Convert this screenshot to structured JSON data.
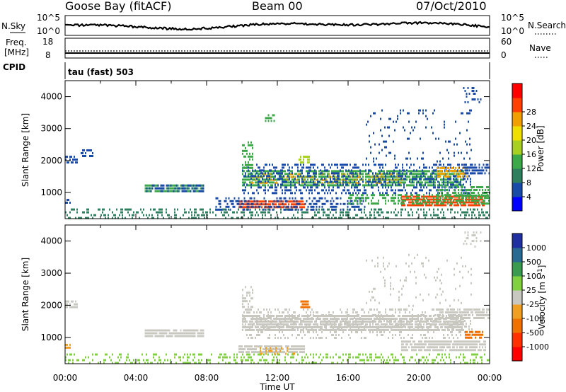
{
  "header": {
    "station": "Goose Bay (fitACF)",
    "beam": "Beam 00",
    "date": "07/Oct/2010"
  },
  "noise_panel": {
    "left_label": "N.Sky",
    "right_label": "N.Search",
    "left_ticks": [
      "10^5",
      "10^0"
    ],
    "right_ticks": [
      "10^5",
      "10^0"
    ]
  },
  "freq_panel": {
    "left_label_1": "Freq.",
    "left_label_2": "[MHz]",
    "right_label": "Nave",
    "left_ticks": [
      "18",
      "8"
    ],
    "right_ticks": [
      "60",
      "0"
    ]
  },
  "cpid": {
    "label": "CPID",
    "text": "tau (fast) 503"
  },
  "chart_data": [
    {
      "type": "heatmap",
      "name": "power",
      "ylabel": "Slant Range [km]",
      "xlabel": "",
      "ylim": [
        180,
        4500
      ],
      "yticks": [
        1000,
        2000,
        3000,
        4000
      ],
      "xlim": [
        0,
        24
      ],
      "x_ticks": [
        "00:00",
        "04:00",
        "08:00",
        "12:00",
        "16:00",
        "20:00",
        "00:00"
      ],
      "colorbar": {
        "label": "Power [dB]",
        "ticks": [
          "4",
          "8",
          "12",
          "16",
          "20",
          "24",
          "28"
        ],
        "colors": [
          "#0000ff",
          "#1a4aa8",
          "#2f7f5f",
          "#3da84a",
          "#a8d020",
          "#f0e000",
          "#f0a000",
          "#ff4000",
          "#ff0000"
        ]
      },
      "regions": [
        {
          "t0": 0.0,
          "t1": 24.0,
          "r0": 200,
          "r1": 500,
          "color": "#2f7f5f",
          "density": 0.35
        },
        {
          "t0": 0.0,
          "t1": 0.7,
          "r0": 1950,
          "r1": 2150,
          "color": "#1a4aa8",
          "density": 0.7
        },
        {
          "t0": 0.8,
          "t1": 1.6,
          "r0": 2100,
          "r1": 2350,
          "color": "#1a4aa8",
          "density": 0.5
        },
        {
          "t0": 0.0,
          "t1": 0.3,
          "r0": 650,
          "r1": 800,
          "color": "#1a4aa8",
          "density": 0.7
        },
        {
          "t0": 4.5,
          "t1": 7.8,
          "r0": 1050,
          "r1": 1250,
          "color": "#3da84a",
          "density": 0.8
        },
        {
          "t0": 4.5,
          "t1": 7.8,
          "r0": 1050,
          "r1": 1250,
          "color": "#1a4aa8",
          "density": 0.5
        },
        {
          "t0": 9.8,
          "t1": 13.5,
          "r0": 500,
          "r1": 750,
          "color": "#ff4000",
          "density": 0.9
        },
        {
          "t0": 8.5,
          "t1": 17.0,
          "r0": 450,
          "r1": 850,
          "color": "#1a4aa8",
          "density": 0.4
        },
        {
          "t0": 10.0,
          "t1": 22.5,
          "r0": 1200,
          "r1": 1700,
          "color": "#3da84a",
          "density": 0.8
        },
        {
          "t0": 10.5,
          "t1": 19.0,
          "r0": 1300,
          "r1": 1600,
          "color": "#f0a000",
          "density": 0.25
        },
        {
          "t0": 10.0,
          "t1": 23.0,
          "r0": 1000,
          "r1": 1900,
          "color": "#1a4aa8",
          "density": 0.35
        },
        {
          "t0": 10.0,
          "t1": 10.6,
          "r0": 1800,
          "r1": 2600,
          "color": "#3da84a",
          "density": 0.5
        },
        {
          "t0": 13.2,
          "t1": 13.8,
          "r0": 1900,
          "r1": 2150,
          "color": "#a8d020",
          "density": 0.8
        },
        {
          "t0": 11.3,
          "t1": 11.8,
          "r0": 3200,
          "r1": 3450,
          "color": "#3da84a",
          "density": 0.5
        },
        {
          "t0": 19.0,
          "t1": 23.8,
          "r0": 600,
          "r1": 900,
          "color": "#ff4000",
          "density": 0.85
        },
        {
          "t0": 16.0,
          "t1": 24.0,
          "r0": 650,
          "r1": 950,
          "color": "#3da84a",
          "density": 0.5
        },
        {
          "t0": 21.0,
          "t1": 24.0,
          "r0": 900,
          "r1": 1200,
          "color": "#3da84a",
          "density": 0.6
        },
        {
          "t0": 21.0,
          "t1": 22.8,
          "r0": 1500,
          "r1": 1800,
          "color": "#f0a000",
          "density": 0.5
        },
        {
          "t0": 22.5,
          "t1": 24.0,
          "r0": 1600,
          "r1": 1900,
          "color": "#1a4aa8",
          "density": 0.7
        },
        {
          "t0": 17.0,
          "t1": 23.0,
          "r0": 2000,
          "r1": 3600,
          "color": "#1a4aa8",
          "density": 0.08
        },
        {
          "t0": 22.5,
          "t1": 23.5,
          "r0": 3800,
          "r1": 4300,
          "color": "#1a4aa8",
          "density": 0.25
        }
      ]
    },
    {
      "type": "heatmap",
      "name": "velocity",
      "ylabel": "Slant Range [km]",
      "xlabel": "Time UT",
      "ylim": [
        180,
        4500
      ],
      "yticks": [
        1000,
        2000,
        3000,
        4000
      ],
      "xlim": [
        0,
        24
      ],
      "x_ticks": [
        "00:00",
        "04:00",
        "08:00",
        "12:00",
        "16:00",
        "20:00",
        "00:00"
      ],
      "colorbar": {
        "label": "Velocity [m s^-1]",
        "ticks": [
          "1000",
          "500",
          "100",
          "25",
          "-25",
          "-100",
          "-500",
          "-1000"
        ],
        "colors": [
          "#2030a0",
          "#2a6a90",
          "#3c9a50",
          "#80d040",
          "#c8c8c0",
          "#f0a020",
          "#f07000",
          "#ff3000",
          "#ff0000"
        ]
      },
      "regions": [
        {
          "t0": 0.0,
          "t1": 24.0,
          "r0": 200,
          "r1": 500,
          "color": "#80d040",
          "density": 0.3
        },
        {
          "t0": 0.0,
          "t1": 0.7,
          "r0": 1950,
          "r1": 2150,
          "color": "#c8c8c0",
          "density": 0.8
        },
        {
          "t0": 0.0,
          "t1": 0.3,
          "r0": 650,
          "r1": 800,
          "color": "#f0a020",
          "density": 0.6
        },
        {
          "t0": 4.5,
          "t1": 7.8,
          "r0": 1050,
          "r1": 1250,
          "color": "#c8c8c0",
          "density": 0.9
        },
        {
          "t0": 9.8,
          "t1": 13.5,
          "r0": 500,
          "r1": 750,
          "color": "#c8c8c0",
          "density": 0.9
        },
        {
          "t0": 11.0,
          "t1": 13.0,
          "r0": 500,
          "r1": 700,
          "color": "#f0a020",
          "density": 0.3
        },
        {
          "t0": 10.0,
          "t1": 22.5,
          "r0": 1200,
          "r1": 1700,
          "color": "#c8c8c0",
          "density": 0.85
        },
        {
          "t0": 10.0,
          "t1": 23.0,
          "r0": 1000,
          "r1": 1900,
          "color": "#c8c8c0",
          "density": 0.25
        },
        {
          "t0": 13.3,
          "t1": 13.8,
          "r0": 1900,
          "r1": 2150,
          "color": "#f07000",
          "density": 0.9
        },
        {
          "t0": 19.0,
          "t1": 23.8,
          "r0": 600,
          "r1": 900,
          "color": "#c8c8c0",
          "density": 0.85
        },
        {
          "t0": 22.6,
          "t1": 23.6,
          "r0": 1000,
          "r1": 1200,
          "color": "#f07000",
          "density": 0.8
        },
        {
          "t0": 21.0,
          "t1": 24.0,
          "r0": 1600,
          "r1": 1900,
          "color": "#c8c8c0",
          "density": 0.8
        },
        {
          "t0": 17.0,
          "t1": 23.0,
          "r0": 2000,
          "r1": 3600,
          "color": "#c8c8c0",
          "density": 0.06
        },
        {
          "t0": 10.0,
          "t1": 10.6,
          "r0": 1800,
          "r1": 2600,
          "color": "#c8c8c0",
          "density": 0.4
        },
        {
          "t0": 22.5,
          "t1": 23.5,
          "r0": 3800,
          "r1": 4300,
          "color": "#c8c8c0",
          "density": 0.25
        }
      ]
    }
  ]
}
